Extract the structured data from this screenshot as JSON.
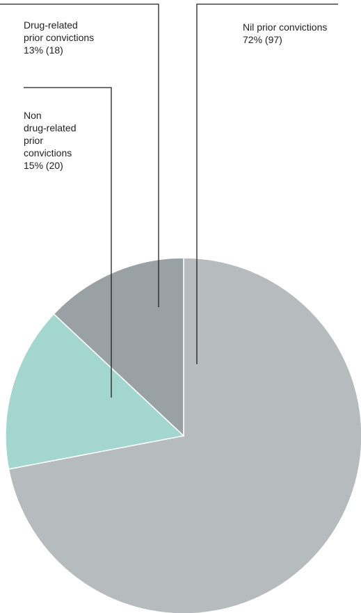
{
  "chart_data": {
    "type": "pie",
    "title": "",
    "slices": [
      {
        "label": "Nil prior convictions",
        "percent_text": "72% (97)",
        "percent": 72,
        "count": 97,
        "color": "#b6bcbe"
      },
      {
        "label": "Non drug-related prior convictions",
        "percent_text": "15% (20)",
        "percent": 15,
        "count": 20,
        "color": "#a3d6cf"
      },
      {
        "label": "Drug-related prior convictions",
        "percent_text": "13% (18)",
        "percent": 13,
        "count": 18,
        "color": "#9aa1a4"
      }
    ],
    "start": "12 o'clock",
    "direction": "clockwise",
    "legend": "callout labels with leader lines"
  },
  "labels": {
    "nil": {
      "line1": "Nil prior convictions",
      "line2": "72% (97)"
    },
    "drug": {
      "line1": "Drug-related",
      "line2": "prior convictions",
      "line3": "13% (18)"
    },
    "nondrug": {
      "line1": "Non",
      "line2": "drug-related",
      "line3": "prior",
      "line4": "convictions",
      "line5": "15% (20)"
    }
  }
}
